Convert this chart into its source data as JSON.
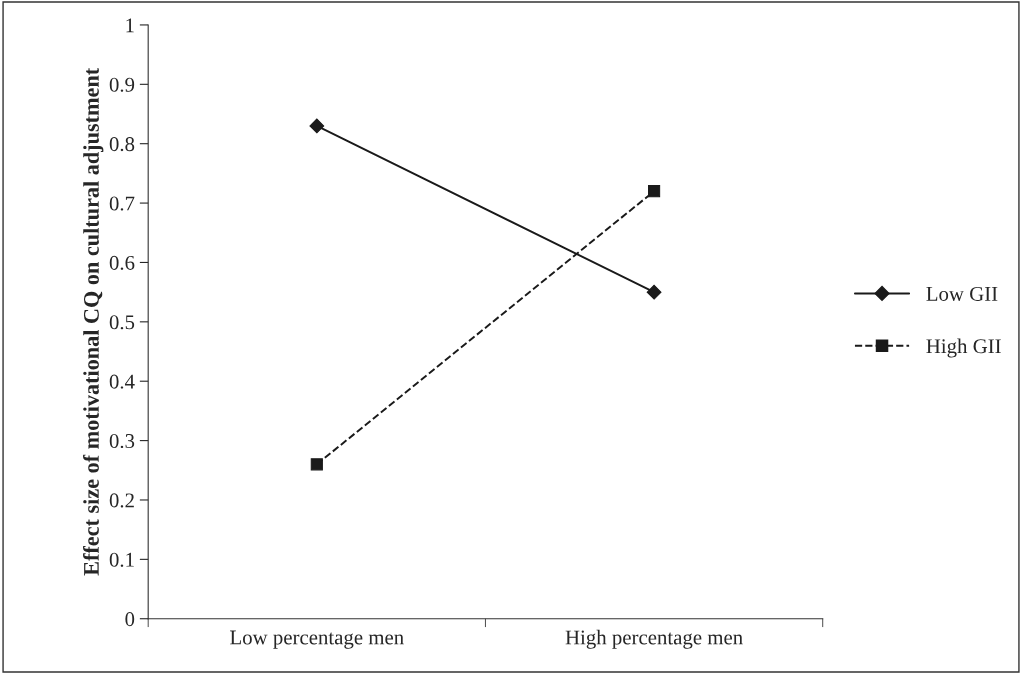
{
  "chart_data": {
    "type": "line",
    "ylabel": "Effect size of motivational CQ on cultural adjustment",
    "categories": [
      "Low percentage men",
      "High percentage men"
    ],
    "series": [
      {
        "name": "Low GII",
        "color": "#1a1a1a",
        "values": [
          0.83,
          0.55
        ],
        "marker": "diamond",
        "line_style": "solid"
      },
      {
        "name": "High GII",
        "color": "#1a1a1a",
        "values": [
          0.26,
          0.72
        ],
        "marker": "square",
        "line_style": "dashed"
      }
    ],
    "ylim": [
      0,
      1
    ],
    "yticks": [
      0,
      0.1,
      0.2,
      0.3,
      0.4,
      0.5,
      0.6,
      0.7,
      0.8,
      0.9,
      1
    ],
    "grid": false,
    "legend": "right"
  }
}
